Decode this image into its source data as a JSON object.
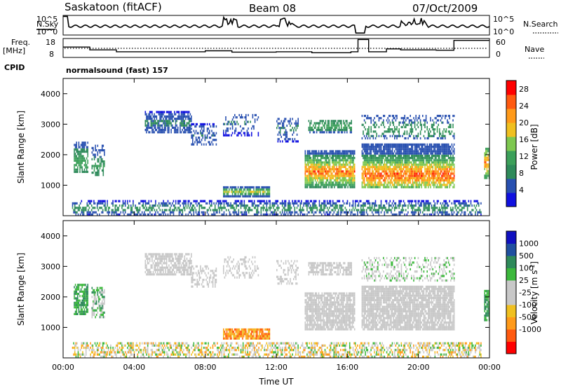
{
  "header": {
    "station": "Saskatoon (fitACF)",
    "beam": "Beam 08",
    "date": "07/Oct/2009"
  },
  "strip": {
    "nsky_label": "N.Sky",
    "nsky_ticks": [
      "10^5",
      "10^0"
    ],
    "nsearch_label": "N.Search",
    "nsearch_ticks": [
      "10^5",
      "10^0"
    ],
    "freq_label_top": "Freq.",
    "freq_label_bottom": "[MHz]",
    "freq_ticks": [
      "18",
      "8"
    ],
    "nave_label": "Nave",
    "nave_ticks": [
      "60",
      "0"
    ],
    "cpid_label": "CPID",
    "cpid_value": "normalsound (fast) 157"
  },
  "colors": {
    "power": [
      "#1010e0",
      "#2850b0",
      "#2e8a5a",
      "#3ca05a",
      "#7ec850",
      "#f0c020",
      "#ff9a1a",
      "#ff5a10",
      "#ff0000"
    ],
    "velocity": [
      "#ff0000",
      "#ff5a10",
      "#ff9a1a",
      "#f0c020",
      "#c8c8c8",
      "#c8c8c8",
      "#3cb83c",
      "#2e8a5a",
      "#2050a0",
      "#1010c0"
    ]
  },
  "chart_data": [
    {
      "type": "heatmap",
      "name": "power",
      "ylabel": "Slant Range [km]",
      "ylim": [
        0,
        4500
      ],
      "yticks": [
        "1000",
        "2000",
        "3000",
        "4000"
      ],
      "x_ticks": [
        "00:00",
        "04:00",
        "08:00",
        "12:00",
        "16:00",
        "20:00",
        "00:00"
      ],
      "colorbar_label": "Power [dB]",
      "colorbar_ticks": [
        "4",
        "8",
        "12",
        "16",
        "20",
        "24",
        "28"
      ],
      "clim": [
        0,
        30
      ],
      "regions": [
        {
          "t0": 0.6,
          "t1": 1.4,
          "r0": 1400,
          "r1": 2400,
          "vmin": 6,
          "vmax": 14,
          "peak": 1700,
          "prob": 0.75
        },
        {
          "t0": 1.6,
          "t1": 2.3,
          "r0": 1300,
          "r1": 2300,
          "vmin": 4,
          "vmax": 13,
          "peak": 1600,
          "prob": 0.55
        },
        {
          "t0": 4.6,
          "t1": 7.2,
          "r0": 2700,
          "r1": 3400,
          "vmin": 3,
          "vmax": 9,
          "peak": 3000,
          "prob": 0.7
        },
        {
          "t0": 7.2,
          "t1": 8.6,
          "r0": 2300,
          "r1": 3000,
          "vmin": 3,
          "vmax": 8,
          "peak": 2600,
          "prob": 0.45
        },
        {
          "t0": 9.0,
          "t1": 11.6,
          "r0": 600,
          "r1": 900,
          "vmin": 6,
          "vmax": 18,
          "peak": 750,
          "prob": 0.85
        },
        {
          "t0": 9.0,
          "t1": 11.0,
          "r0": 2600,
          "r1": 3300,
          "vmin": 3,
          "vmax": 8,
          "peak": 3000,
          "prob": 0.3
        },
        {
          "t0": 12.0,
          "t1": 13.2,
          "r0": 2400,
          "r1": 3200,
          "vmin": 3,
          "vmax": 9,
          "peak": 2800,
          "prob": 0.4
        },
        {
          "t0": 13.6,
          "t1": 16.4,
          "r0": 900,
          "r1": 2100,
          "vmin": 6,
          "vmax": 28,
          "peak": 1400,
          "prob": 0.85
        },
        {
          "t0": 13.8,
          "t1": 16.2,
          "r0": 2700,
          "r1": 3100,
          "vmin": 6,
          "vmax": 14,
          "peak": 2900,
          "prob": 0.65
        },
        {
          "t0": 16.8,
          "t1": 22.0,
          "r0": 900,
          "r1": 2300,
          "vmin": 6,
          "vmax": 30,
          "peak": 1300,
          "prob": 0.85
        },
        {
          "t0": 16.8,
          "t1": 22.0,
          "r0": 2500,
          "r1": 3300,
          "vmin": 4,
          "vmax": 12,
          "peak": 2800,
          "prob": 0.35
        },
        {
          "t0": 23.7,
          "t1": 24.0,
          "r0": 1200,
          "r1": 2200,
          "vmin": 10,
          "vmax": 26,
          "peak": 1700,
          "prob": 0.8
        },
        {
          "t0": 0.5,
          "t1": 23.5,
          "r0": 0,
          "r1": 500,
          "vmin": 2,
          "vmax": 12,
          "peak": 200,
          "prob": 0.5
        }
      ]
    },
    {
      "type": "heatmap",
      "name": "velocity",
      "ylabel": "Slant Range [km]",
      "ylim": [
        0,
        4500
      ],
      "yticks": [
        "1000",
        "2000",
        "3000",
        "4000"
      ],
      "x_ticks": [
        "00:00",
        "04:00",
        "08:00",
        "12:00",
        "16:00",
        "20:00",
        "00:00"
      ],
      "xlabel": "Time UT",
      "colorbar_label": "Velocity [m s",
      "colorbar_label_sup": "-1",
      "colorbar_label_end": "]",
      "colorbar_ticks": [
        "1000",
        "500",
        "100",
        "25",
        "-25",
        "-100",
        "-500",
        "-1000"
      ],
      "regions": [
        {
          "t0": 0.6,
          "t1": 1.4,
          "r0": 1400,
          "r1": 2400,
          "band": [
            6,
            7
          ],
          "prob": 0.75
        },
        {
          "t0": 1.6,
          "t1": 2.3,
          "r0": 1300,
          "r1": 2300,
          "band": [
            4,
            7
          ],
          "prob": 0.55
        },
        {
          "t0": 4.6,
          "t1": 7.2,
          "r0": 2700,
          "r1": 3400,
          "band": [
            4,
            5
          ],
          "prob": 0.7
        },
        {
          "t0": 7.2,
          "t1": 8.6,
          "r0": 2300,
          "r1": 3000,
          "band": [
            4,
            5
          ],
          "prob": 0.45
        },
        {
          "t0": 9.0,
          "t1": 11.6,
          "r0": 600,
          "r1": 900,
          "band": [
            1,
            3
          ],
          "prob": 0.85
        },
        {
          "t0": 9.0,
          "t1": 11.0,
          "r0": 2600,
          "r1": 3300,
          "band": [
            4,
            5
          ],
          "prob": 0.3
        },
        {
          "t0": 12.0,
          "t1": 13.2,
          "r0": 2400,
          "r1": 3200,
          "band": [
            4,
            5
          ],
          "prob": 0.4
        },
        {
          "t0": 13.6,
          "t1": 16.4,
          "r0": 900,
          "r1": 2100,
          "band": [
            4,
            5
          ],
          "prob": 0.85
        },
        {
          "t0": 13.8,
          "t1": 16.2,
          "r0": 2700,
          "r1": 3100,
          "band": [
            4,
            5
          ],
          "prob": 0.65
        },
        {
          "t0": 16.8,
          "t1": 22.0,
          "r0": 900,
          "r1": 2300,
          "band": [
            4,
            5
          ],
          "prob": 0.85
        },
        {
          "t0": 16.8,
          "t1": 22.0,
          "r0": 2500,
          "r1": 3300,
          "band": [
            4,
            6
          ],
          "prob": 0.35
        },
        {
          "t0": 23.7,
          "t1": 24.0,
          "r0": 1200,
          "r1": 2200,
          "band": [
            6,
            7
          ],
          "prob": 0.8
        },
        {
          "t0": 0.5,
          "t1": 23.5,
          "r0": 0,
          "r1": 500,
          "band": [
            2,
            6
          ],
          "prob": 0.5
        }
      ]
    }
  ]
}
